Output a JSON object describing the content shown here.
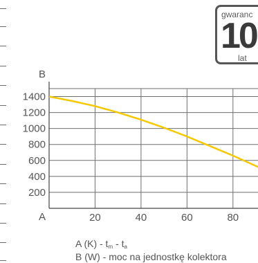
{
  "badge": {
    "top_text": "gwaranc",
    "number": "10",
    "bottom_text": "lat"
  },
  "chart_data": {
    "type": "line",
    "y_axis_letter": "B",
    "x_axis_letter": "A",
    "xlim": [
      0,
      93
    ],
    "ylim": [
      0,
      1500
    ],
    "x_ticks": [
      20,
      40,
      60,
      80
    ],
    "y_ticks": [
      200,
      400,
      600,
      800,
      1000,
      1200,
      1400
    ],
    "grid": true,
    "series": [
      {
        "color": "#f5c800",
        "x": [
          0,
          10,
          20,
          30,
          40,
          50,
          60,
          70,
          80,
          90,
          93
        ],
        "y": [
          1400,
          1345,
          1280,
          1200,
          1110,
          1010,
          900,
          780,
          660,
          530,
          490
        ]
      }
    ]
  },
  "legend": {
    "line_a_prefix": "A (K)  - t",
    "line_a_sub1": "m",
    "line_a_mid": " - t",
    "line_a_sub2": "a",
    "line_b": "B (W) - moc na jednostkę kolektora"
  }
}
